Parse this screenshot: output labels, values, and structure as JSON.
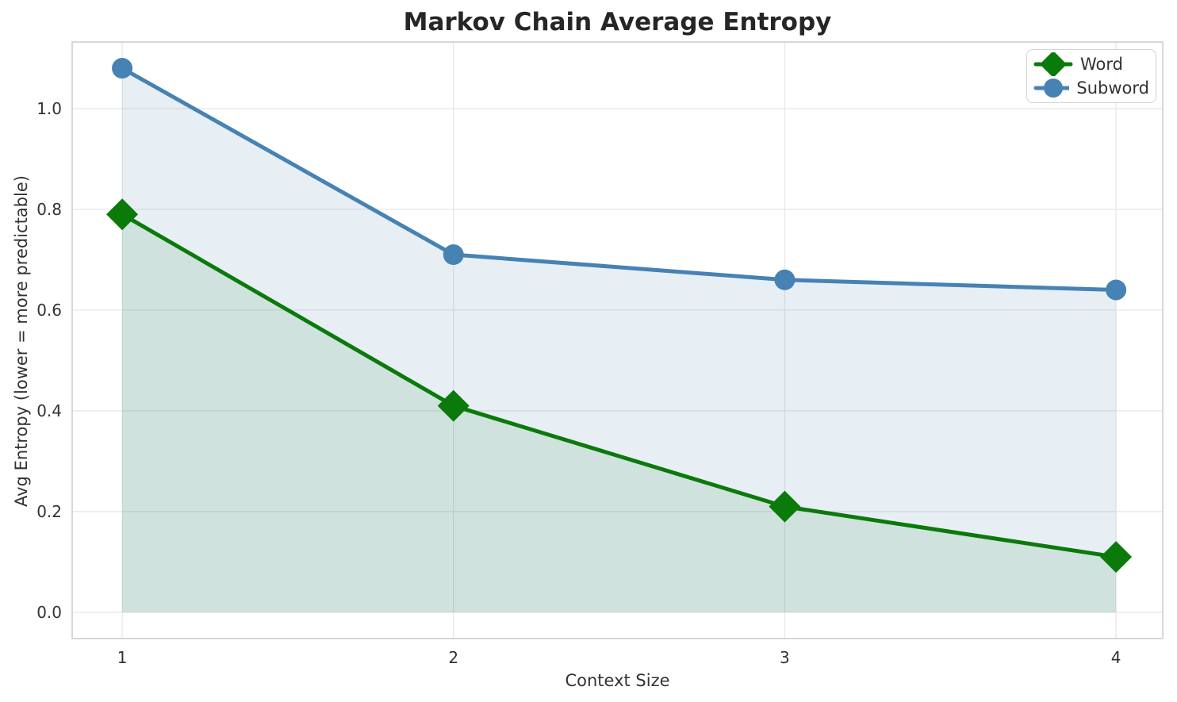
{
  "chart_data": {
    "type": "line",
    "title": "Markov Chain Average Entropy",
    "xlabel": "Context Size",
    "ylabel": "Avg Entropy (lower = more predictable)",
    "x": [
      1,
      2,
      3,
      4
    ],
    "series": [
      {
        "name": "Word",
        "values": [
          0.79,
          0.41,
          0.21,
          0.11
        ],
        "color": "#0a7a0a",
        "marker": "diamond",
        "fill_alpha": 0.1,
        "line_width": 5
      },
      {
        "name": "Subword",
        "values": [
          1.08,
          0.71,
          0.66,
          0.64
        ],
        "color": "#4682b4",
        "marker": "circle",
        "fill_alpha": 0.13,
        "line_width": 5
      }
    ],
    "area_fill_to_zero": true,
    "xticks": [
      1,
      2,
      3,
      4
    ],
    "xtick_labels": [
      "1",
      "2",
      "3",
      "4"
    ],
    "yticks": [
      0.0,
      0.2,
      0.4,
      0.6,
      0.8,
      1.0
    ],
    "ytick_labels": [
      "0.0",
      "0.2",
      "0.4",
      "0.6",
      "0.8",
      "1.0"
    ],
    "xlim": [
      0.849,
      4.141
    ],
    "ylim": [
      -0.052,
      1.132
    ],
    "grid": true,
    "legend_position": "upper right"
  },
  "style_colors": {
    "background": "#ffffff",
    "grid": "#e7e7e7",
    "spine": "#cccccc",
    "title_text": "#262626",
    "tick_text": "#333333"
  }
}
